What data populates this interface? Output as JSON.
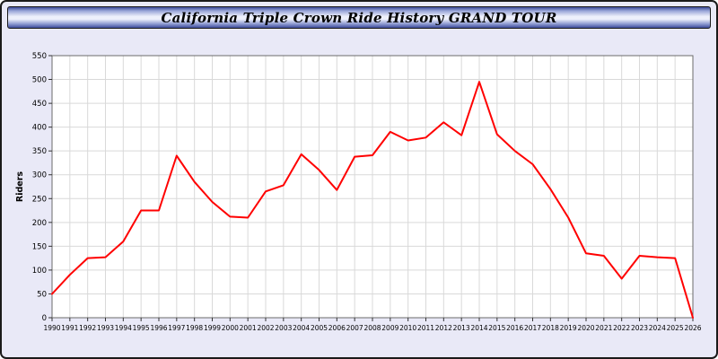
{
  "title": "California Triple Crown Ride History GRAND TOUR",
  "chart_data": {
    "type": "line",
    "title": "California Triple Crown Ride History GRAND TOUR",
    "xlabel": "",
    "ylabel": "Riders",
    "ylim": [
      0,
      550
    ],
    "ytick_step": 50,
    "grid": true,
    "legend": "none",
    "line_color": "#ff0000",
    "grid_color": "#d9d9d9",
    "axis_color": "#6b6b6b",
    "plot_bg": "#ffffff",
    "page_bg": "#e9e9f7",
    "x": [
      1990,
      1991,
      1992,
      1993,
      1994,
      1995,
      1996,
      1997,
      1998,
      1999,
      2000,
      2001,
      2002,
      2003,
      2004,
      2005,
      2006,
      2007,
      2008,
      2009,
      2010,
      2011,
      2012,
      2013,
      2014,
      2015,
      2016,
      2017,
      2018,
      2019,
      2020,
      2021,
      2022,
      2023,
      2024,
      2025,
      2026
    ],
    "series": [
      {
        "name": "Riders",
        "values": [
          50,
          90,
          125,
          127,
          160,
          225,
          225,
          340,
          285,
          243,
          212,
          210,
          265,
          278,
          343,
          310,
          268,
          338,
          341,
          390,
          372,
          378,
          410,
          383,
          495,
          385,
          350,
          322,
          270,
          210,
          135,
          130,
          82,
          130,
          127,
          125,
          0
        ]
      }
    ]
  }
}
